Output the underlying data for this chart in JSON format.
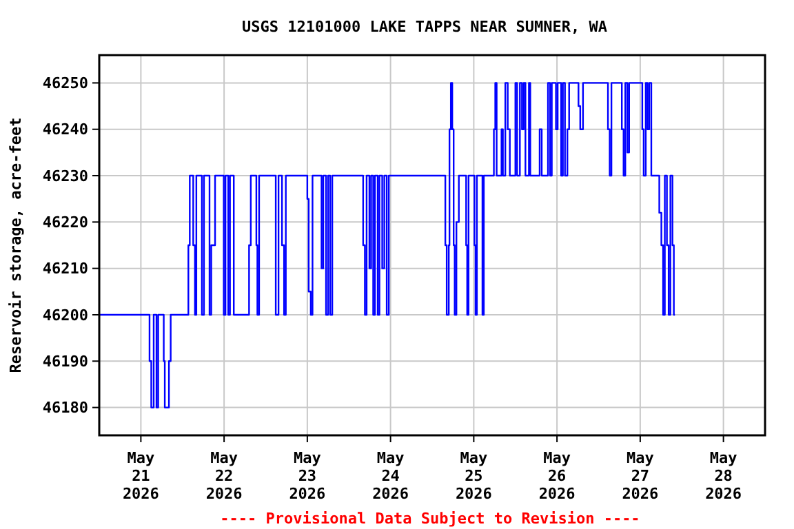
{
  "chart_data": {
    "type": "step",
    "title": "USGS 12101000 LAKE TAPPS NEAR SUMNER, WA",
    "ylabel": "Reservoir storage, acre-feet",
    "annotations": [
      "---- Provisional Data Subject to Revision ----"
    ],
    "xlim": [
      "2026-05-20T12:00",
      "2026-05-28T12:00"
    ],
    "xticks": [
      {
        "value": "2026-05-21",
        "label": "May\n21\n2026"
      },
      {
        "value": "2026-05-22",
        "label": "May\n22\n2026"
      },
      {
        "value": "2026-05-23",
        "label": "May\n23\n2026"
      },
      {
        "value": "2026-05-24",
        "label": "May\n24\n2026"
      },
      {
        "value": "2026-05-25",
        "label": "May\n25\n2026"
      },
      {
        "value": "2026-05-26",
        "label": "May\n26\n2026"
      },
      {
        "value": "2026-05-27",
        "label": "May\n27\n2026"
      },
      {
        "value": "2026-05-28",
        "label": "May\n28\n2026"
      }
    ],
    "ylim": [
      46174,
      46256
    ],
    "yticks": [
      46180,
      46190,
      46200,
      46210,
      46220,
      46230,
      46240,
      46250
    ],
    "grid": true,
    "marker": "none",
    "line_style": "solid",
    "series": [
      {
        "color": "#0000ff",
        "x": [
          "2026-05-20T12:00",
          "2026-05-21T02:30",
          "2026-05-21T03:00",
          "2026-05-21T03:42",
          "2026-05-21T04:30",
          "2026-05-21T05:00",
          "2026-05-21T06:36",
          "2026-05-21T06:54",
          "2026-05-21T08:06",
          "2026-05-21T08:36",
          "2026-05-21T13:42",
          "2026-05-21T14:06",
          "2026-05-21T15:06",
          "2026-05-21T15:36",
          "2026-05-21T16:00",
          "2026-05-21T17:36",
          "2026-05-21T18:12",
          "2026-05-21T19:48",
          "2026-05-21T20:18",
          "2026-05-21T21:24",
          "2026-05-21T23:54",
          "2026-05-22T00:24",
          "2026-05-22T01:12",
          "2026-05-22T01:42",
          "2026-05-22T02:48",
          "2026-05-22T07:12",
          "2026-05-22T07:42",
          "2026-05-22T09:18",
          "2026-05-22T09:36",
          "2026-05-22T10:06",
          "2026-05-22T14:54",
          "2026-05-22T15:42",
          "2026-05-22T16:42",
          "2026-05-22T17:18",
          "2026-05-22T17:48",
          "2026-05-23T00:00",
          "2026-05-23T00:24",
          "2026-05-23T01:00",
          "2026-05-23T01:30",
          "2026-05-23T04:06",
          "2026-05-23T04:36",
          "2026-05-23T05:24",
          "2026-05-23T06:00",
          "2026-05-23T06:36",
          "2026-05-23T07:12",
          "2026-05-23T16:06",
          "2026-05-23T16:36",
          "2026-05-23T17:06",
          "2026-05-23T17:54",
          "2026-05-23T18:24",
          "2026-05-23T19:00",
          "2026-05-23T19:30",
          "2026-05-23T20:18",
          "2026-05-23T20:48",
          "2026-05-23T21:36",
          "2026-05-23T22:12",
          "2026-05-23T22:54",
          "2026-05-23T23:30",
          "2026-05-24T15:48",
          "2026-05-24T16:12",
          "2026-05-24T16:48",
          "2026-05-24T17:00",
          "2026-05-24T17:24",
          "2026-05-24T17:48",
          "2026-05-24T18:12",
          "2026-05-24T18:30",
          "2026-05-24T19:00",
          "2026-05-24T19:42",
          "2026-05-24T21:48",
          "2026-05-24T22:06",
          "2026-05-24T22:30",
          "2026-05-25T00:12",
          "2026-05-25T00:30",
          "2026-05-25T00:54",
          "2026-05-25T02:30",
          "2026-05-25T02:54",
          "2026-05-25T05:48",
          "2026-05-25T06:12",
          "2026-05-25T06:36",
          "2026-05-25T08:00",
          "2026-05-25T08:24",
          "2026-05-25T09:06",
          "2026-05-25T09:48",
          "2026-05-25T10:24",
          "2026-05-25T12:00",
          "2026-05-25T12:30",
          "2026-05-25T13:18",
          "2026-05-25T13:54",
          "2026-05-25T14:24",
          "2026-05-25T14:54",
          "2026-05-25T15:54",
          "2026-05-25T16:18",
          "2026-05-25T19:00",
          "2026-05-25T19:36",
          "2026-05-25T21:24",
          "2026-05-25T22:00",
          "2026-05-25T22:30",
          "2026-05-25T23:42",
          "2026-05-26T00:12",
          "2026-05-26T01:12",
          "2026-05-26T01:42",
          "2026-05-26T02:18",
          "2026-05-26T03:00",
          "2026-05-26T03:30",
          "2026-05-26T06:12",
          "2026-05-26T06:42",
          "2026-05-26T07:30",
          "2026-05-26T14:42",
          "2026-05-26T15:12",
          "2026-05-26T15:42",
          "2026-05-26T18:42",
          "2026-05-26T19:12",
          "2026-05-26T19:42",
          "2026-05-26T20:18",
          "2026-05-26T20:48",
          "2026-05-27T00:36",
          "2026-05-27T01:00",
          "2026-05-27T01:36",
          "2026-05-27T02:06",
          "2026-05-27T02:36",
          "2026-05-27T03:12",
          "2026-05-27T05:30",
          "2026-05-27T06:06",
          "2026-05-27T06:36",
          "2026-05-27T07:06",
          "2026-05-27T07:42",
          "2026-05-27T08:12",
          "2026-05-27T08:42",
          "2026-05-27T09:18",
          "2026-05-27T09:42",
          "2026-05-27T10:00"
        ],
        "values": [
          46200,
          46190,
          46180,
          46200,
          46180,
          46200,
          46190,
          46180,
          46190,
          46200,
          46215,
          46230,
          46215,
          46200,
          46230,
          46200,
          46230,
          46200,
          46215,
          46230,
          46200,
          46230,
          46200,
          46230,
          46200,
          46215,
          46230,
          46215,
          46200,
          46230,
          46200,
          46230,
          46215,
          46200,
          46230,
          46225,
          46205,
          46200,
          46230,
          46210,
          46230,
          46200,
          46230,
          46200,
          46230,
          46215,
          46200,
          46230,
          46210,
          46230,
          46200,
          46230,
          46200,
          46230,
          46210,
          46230,
          46200,
          46230,
          46215,
          46200,
          46215,
          46240,
          46250,
          46240,
          46215,
          46200,
          46220,
          46230,
          46215,
          46200,
          46230,
          46215,
          46200,
          46230,
          46200,
          46230,
          46240,
          46250,
          46230,
          46240,
          46230,
          46250,
          46240,
          46230,
          46250,
          46230,
          46250,
          46240,
          46250,
          46230,
          46250,
          46230,
          46240,
          46230,
          46250,
          46230,
          46250,
          46240,
          46250,
          46230,
          46250,
          46230,
          46240,
          46250,
          46245,
          46240,
          46250,
          46240,
          46230,
          46250,
          46240,
          46230,
          46250,
          46235,
          46250,
          46240,
          46230,
          46250,
          46240,
          46250,
          46230,
          46222,
          46215,
          46200,
          46230,
          46215,
          46200,
          46230,
          46215,
          46200,
          46200
        ]
      }
    ]
  }
}
